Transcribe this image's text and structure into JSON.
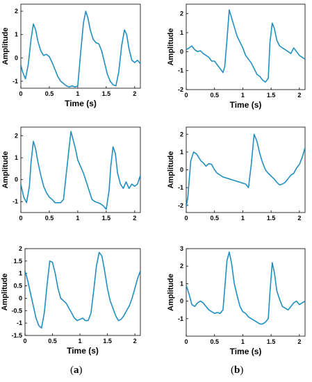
{
  "panel_labels": {
    "a": "a",
    "b": "b"
  },
  "line_color": "#1f8fc2",
  "chart_data": [
    {
      "id": "a1",
      "type": "line",
      "xlabel": "Time (s)",
      "ylabel": "Amplitude",
      "xlim": [
        0,
        2.1
      ],
      "ylim": [
        -1.3,
        2.3
      ],
      "xticks": [
        0,
        0.5,
        1,
        1.5,
        2
      ],
      "yticks": [
        -1,
        0,
        1,
        2
      ],
      "xtick_labels": [
        "0",
        "0.5",
        "1",
        "1.5",
        "2"
      ],
      "ytick_labels": [
        "-1",
        "0",
        "1",
        "2"
      ],
      "series": [
        {
          "x": [
            0,
            0.03,
            0.08,
            0.13,
            0.18,
            0.22,
            0.26,
            0.3,
            0.35,
            0.4,
            0.45,
            0.5,
            0.55,
            0.6,
            0.65,
            0.7,
            0.75,
            0.8,
            0.85,
            0.9,
            0.95,
            1.0,
            1.05,
            1.1,
            1.14,
            1.18,
            1.22,
            1.27,
            1.32,
            1.37,
            1.42,
            1.47,
            1.52,
            1.57,
            1.62,
            1.67,
            1.72,
            1.77,
            1.82,
            1.86,
            1.9,
            1.95,
            2.0,
            2.05,
            2.1
          ],
          "y": [
            -0.3,
            -0.6,
            -0.9,
            -0.3,
            0.8,
            1.45,
            1.2,
            0.7,
            0.3,
            0.1,
            0.15,
            0.05,
            -0.2,
            -0.5,
            -0.8,
            -1.0,
            -1.1,
            -1.2,
            -1.25,
            -1.2,
            -1.25,
            -1.2,
            0.2,
            1.5,
            2.0,
            1.7,
            1.2,
            0.8,
            0.65,
            0.6,
            0.3,
            -0.2,
            -0.7,
            -1.0,
            -1.15,
            -1.2,
            -0.6,
            0.5,
            1.2,
            1.0,
            0.4,
            -0.1,
            -0.2,
            -0.1,
            -0.25
          ]
        }
      ]
    },
    {
      "id": "b1",
      "type": "line",
      "xlabel": "Time (s)",
      "ylabel": "Amplitude",
      "xlim": [
        0,
        2.1
      ],
      "ylim": [
        -2,
        2.5
      ],
      "xticks": [
        0,
        0.5,
        1,
        1.5,
        2
      ],
      "yticks": [
        -2,
        -1,
        0,
        1,
        2
      ],
      "xtick_labels": [
        "0",
        "0.5",
        "1",
        "1.5",
        "2"
      ],
      "ytick_labels": [
        "-2",
        "-1",
        "0",
        "1",
        "2"
      ],
      "series": [
        {
          "x": [
            0,
            0.05,
            0.1,
            0.15,
            0.2,
            0.25,
            0.3,
            0.35,
            0.4,
            0.45,
            0.5,
            0.55,
            0.6,
            0.65,
            0.68,
            0.72,
            0.76,
            0.8,
            0.85,
            0.9,
            0.95,
            1.0,
            1.05,
            1.1,
            1.15,
            1.2,
            1.25,
            1.3,
            1.35,
            1.4,
            1.45,
            1.48,
            1.52,
            1.56,
            1.6,
            1.65,
            1.7,
            1.75,
            1.8,
            1.85,
            1.9,
            1.95,
            2.0,
            2.05,
            2.1
          ],
          "y": [
            0.1,
            0.2,
            0.3,
            0.1,
            0.0,
            0.05,
            -0.1,
            -0.2,
            -0.3,
            -0.5,
            -0.5,
            -0.7,
            -0.9,
            -1.1,
            -0.8,
            0.6,
            2.2,
            1.8,
            1.3,
            0.8,
            0.5,
            0.2,
            -0.2,
            -0.4,
            -0.6,
            -0.9,
            -1.2,
            -1.3,
            -1.5,
            -1.6,
            -1.4,
            0.5,
            1.5,
            1.2,
            0.6,
            0.3,
            0.2,
            0.1,
            0.0,
            -0.1,
            0.2,
            0.0,
            -0.2,
            -0.3,
            -0.4
          ]
        }
      ]
    },
    {
      "id": "a2",
      "type": "line",
      "xlabel": "",
      "ylabel": "Amplitude",
      "xlim": [
        0,
        2.1
      ],
      "ylim": [
        -1.5,
        2.4
      ],
      "xticks": [
        0,
        0.5,
        1,
        1.5,
        2
      ],
      "yticks": [
        -1,
        0,
        1,
        2
      ],
      "xtick_labels": [
        "0",
        "0.5",
        "1",
        "1.5",
        "2"
      ],
      "ytick_labels": [
        "-1",
        "0",
        "1",
        "2"
      ],
      "series": [
        {
          "x": [
            0,
            0.05,
            0.1,
            0.15,
            0.18,
            0.22,
            0.26,
            0.3,
            0.35,
            0.4,
            0.45,
            0.5,
            0.55,
            0.6,
            0.65,
            0.7,
            0.75,
            0.8,
            0.85,
            0.88,
            0.92,
            0.96,
            1.0,
            1.05,
            1.1,
            1.15,
            1.2,
            1.25,
            1.3,
            1.35,
            1.4,
            1.45,
            1.5,
            1.55,
            1.58,
            1.62,
            1.66,
            1.7,
            1.75,
            1.8,
            1.85,
            1.9,
            1.95,
            2.0,
            2.05,
            2.1
          ],
          "y": [
            -0.2,
            -0.8,
            -1.05,
            -0.3,
            0.8,
            1.75,
            1.4,
            0.8,
            0.2,
            -0.3,
            -0.6,
            -0.8,
            -0.9,
            -1.05,
            -1.05,
            -1.05,
            -0.9,
            0.3,
            1.5,
            2.2,
            1.8,
            1.4,
            0.9,
            0.6,
            0.3,
            -0.1,
            -0.5,
            -0.9,
            -1.0,
            -1.05,
            -1.1,
            -1.2,
            -1.35,
            -0.5,
            0.6,
            1.5,
            1.2,
            0.3,
            -0.2,
            -0.4,
            -0.1,
            -0.4,
            -0.2,
            -0.3,
            -0.2,
            0.2
          ]
        }
      ]
    },
    {
      "id": "b2",
      "type": "line",
      "xlabel": "",
      "ylabel": "Amplitude",
      "xlim": [
        0,
        2.1
      ],
      "ylim": [
        -2.4,
        2.4
      ],
      "xticks": [
        0,
        0.5,
        1,
        1.5,
        2
      ],
      "yticks": [
        -2,
        -1,
        0,
        1,
        2
      ],
      "xtick_labels": [
        "0",
        "0.5",
        "1",
        "1.5",
        "2"
      ],
      "ytick_labels": [
        "-2",
        "-1",
        "0",
        "1",
        "2"
      ],
      "series": [
        {
          "x": [
            0,
            0.03,
            0.08,
            0.13,
            0.18,
            0.22,
            0.26,
            0.3,
            0.35,
            0.4,
            0.45,
            0.5,
            0.55,
            0.6,
            0.65,
            0.7,
            0.75,
            0.8,
            0.85,
            0.9,
            0.95,
            1.0,
            1.05,
            1.1,
            1.15,
            1.2,
            1.25,
            1.3,
            1.35,
            1.4,
            1.45,
            1.5,
            1.55,
            1.6,
            1.65,
            1.7,
            1.75,
            1.8,
            1.85,
            1.9,
            1.95,
            2.0,
            2.05,
            2.1
          ],
          "y": [
            -2.1,
            -1.5,
            0.5,
            1.0,
            0.9,
            0.7,
            0.5,
            0.4,
            0.2,
            0.35,
            0.3,
            0.0,
            -0.2,
            -0.3,
            -0.4,
            -0.45,
            -0.5,
            -0.55,
            -0.6,
            -0.65,
            -0.7,
            -0.75,
            -0.8,
            -1.0,
            0.3,
            2.0,
            1.6,
            0.9,
            0.4,
            0.0,
            -0.2,
            -0.35,
            -0.5,
            -0.7,
            -0.85,
            -0.8,
            -0.7,
            -0.5,
            -0.3,
            -0.2,
            0.1,
            0.3,
            0.7,
            1.25
          ]
        }
      ]
    },
    {
      "id": "a3",
      "type": "line",
      "xlabel": "Time (s)",
      "ylabel": "Amplitude",
      "xlim": [
        0,
        2.1
      ],
      "ylim": [
        -1.5,
        2.0
      ],
      "xticks": [
        0,
        0.5,
        1,
        1.5,
        2
      ],
      "yticks": [
        -1.5,
        -1,
        -0.5,
        0,
        0.5,
        1,
        1.5,
        2
      ],
      "xtick_labels": [
        "0",
        "0.5",
        "1",
        "1.5",
        "2"
      ],
      "ytick_labels": [
        "-1.5",
        "-1",
        "-0.5",
        "0",
        "0.5",
        "1",
        "1.5",
        "2"
      ],
      "series": [
        {
          "x": [
            0,
            0.05,
            0.1,
            0.15,
            0.2,
            0.25,
            0.3,
            0.35,
            0.4,
            0.45,
            0.5,
            0.55,
            0.6,
            0.65,
            0.7,
            0.75,
            0.8,
            0.85,
            0.9,
            0.95,
            1.0,
            1.05,
            1.1,
            1.15,
            1.2,
            1.25,
            1.3,
            1.35,
            1.4,
            1.45,
            1.5,
            1.55,
            1.6,
            1.65,
            1.7,
            1.75,
            1.8,
            1.85,
            1.9,
            1.95,
            2.0,
            2.05,
            2.1
          ],
          "y": [
            1.1,
            0.7,
            0.2,
            -0.3,
            -0.8,
            -1.1,
            -1.2,
            -0.6,
            0.5,
            1.5,
            1.45,
            1.0,
            0.4,
            0.0,
            -0.1,
            -0.2,
            -0.4,
            -0.6,
            -0.8,
            -0.9,
            -0.85,
            -0.8,
            -0.9,
            -0.9,
            -0.6,
            0.3,
            1.3,
            1.85,
            1.7,
            1.1,
            0.4,
            -0.1,
            -0.4,
            -0.7,
            -0.9,
            -0.85,
            -0.7,
            -0.5,
            -0.3,
            0.0,
            0.4,
            0.8,
            1.1
          ]
        }
      ]
    },
    {
      "id": "b3",
      "type": "line",
      "xlabel": "Time (s)",
      "ylabel": "Amplitude",
      "xlim": [
        0,
        2.1
      ],
      "ylim": [
        -2,
        3
      ],
      "xticks": [
        0,
        0.5,
        1,
        1.5,
        2
      ],
      "yticks": [
        -1,
        0,
        1,
        2,
        3
      ],
      "xtick_labels": [
        "0",
        "0.5",
        "1",
        "1.5",
        "2"
      ],
      "ytick_labels": [
        "-1",
        "0",
        "1",
        "2",
        "3"
      ],
      "series": [
        {
          "x": [
            0,
            0.05,
            0.1,
            0.15,
            0.2,
            0.25,
            0.3,
            0.35,
            0.4,
            0.45,
            0.5,
            0.55,
            0.6,
            0.65,
            0.7,
            0.72,
            0.76,
            0.8,
            0.85,
            0.9,
            0.95,
            1.0,
            1.05,
            1.1,
            1.15,
            1.2,
            1.25,
            1.3,
            1.35,
            1.4,
            1.45,
            1.48,
            1.52,
            1.56,
            1.6,
            1.65,
            1.7,
            1.75,
            1.8,
            1.85,
            1.9,
            1.95,
            2.0,
            2.05,
            2.1
          ],
          "y": [
            0.9,
            0.4,
            -0.2,
            -0.3,
            -0.1,
            0.0,
            -0.1,
            -0.3,
            -0.5,
            -0.6,
            -0.7,
            -0.65,
            -0.7,
            -0.5,
            1.5,
            2.3,
            2.8,
            2.2,
            1.0,
            0.3,
            -0.3,
            -0.6,
            -0.7,
            -0.9,
            -1.0,
            -1.1,
            -1.2,
            -1.3,
            -1.3,
            -1.2,
            -1.0,
            0.5,
            2.2,
            1.6,
            0.6,
            0.1,
            -0.3,
            -0.4,
            -0.5,
            -0.3,
            -0.1,
            0.0,
            -0.2,
            -0.1,
            0.0
          ]
        }
      ]
    }
  ]
}
